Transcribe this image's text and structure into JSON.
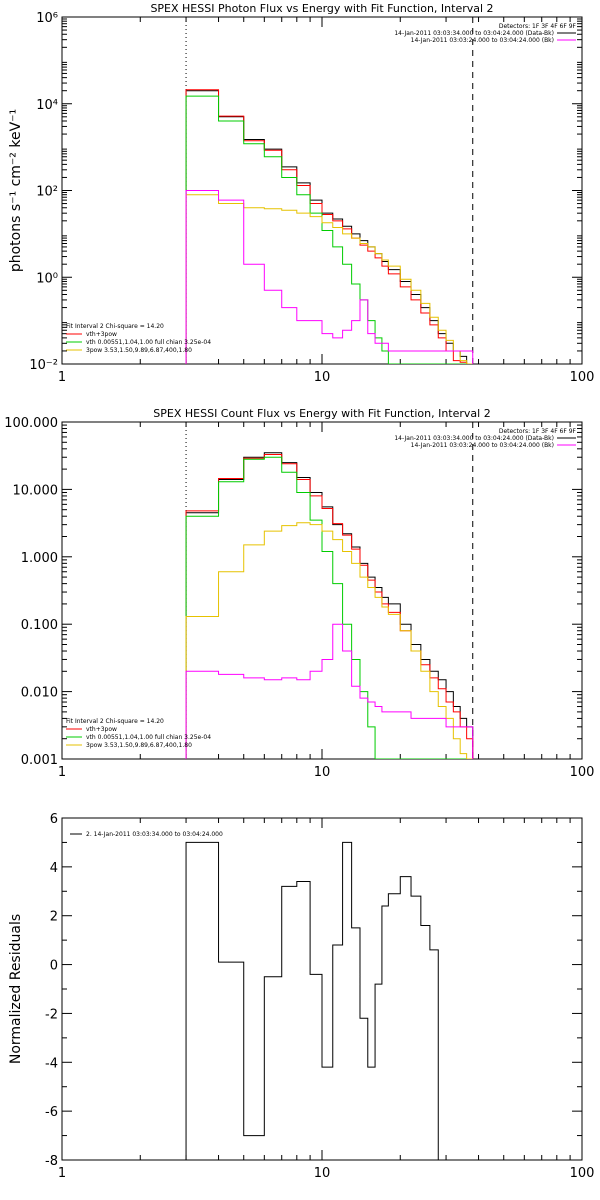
{
  "chart_data": [
    {
      "type": "line",
      "title": "SPEX HESSI Photon Flux vs Energy with Fit Function, Interval 2",
      "xlabel": "",
      "ylabel": "photons s⁻¹ cm⁻² keV⁻¹",
      "xscale": "log",
      "yscale": "log",
      "xlim": [
        1,
        100
      ],
      "ylim": [
        0.01,
        1000000
      ],
      "xticks": [
        {
          "v": 1,
          "label": "1"
        },
        {
          "v": 10,
          "label": "10"
        },
        {
          "v": 100,
          "label": "100"
        }
      ],
      "yticks": [
        {
          "v": 0.01,
          "label": "10⁻²"
        },
        {
          "v": 1,
          "label": "10⁰"
        },
        {
          "v": 100,
          "label": "10²"
        },
        {
          "v": 10000,
          "label": "10⁴"
        },
        {
          "v": 1000000,
          "label": "10⁶"
        }
      ],
      "vlines": [
        {
          "x": 3,
          "style": "dotted"
        },
        {
          "x": 38,
          "style": "dashed"
        }
      ],
      "legend_top_right": [
        {
          "text": "Detectors: 1F 3F 4F 6F 9F"
        },
        {
          "text": "14-Jan-2011 03:03:34.000 to 03:04:24.000 (Data-Bk)",
          "color": "#000000"
        },
        {
          "text": "14-Jan-2011 03:03:24.000 to 03:04:24.000 (Bk)",
          "color": "#ff00ff"
        }
      ],
      "legend_bottom_left": [
        {
          "text": "Fit Interval 2   Chi-square = 14.20"
        },
        {
          "text": "vth+3pow",
          "color": "#ff0000"
        },
        {
          "text": "vth 0.00551,1.04,1.00  full chian 3.25e-04",
          "color": "#00cc00"
        },
        {
          "text": "3pow 3.53,1.50,9.89,6.87,400,1.80",
          "color": "#e6c200"
        }
      ],
      "edges": [
        3,
        4,
        5,
        6,
        7,
        8,
        9,
        10,
        11,
        12,
        13,
        14,
        15,
        16,
        17,
        18,
        20,
        22,
        24,
        26,
        28,
        30,
        32,
        34,
        36,
        38
      ],
      "series": [
        {
          "color": "#000000",
          "values": [
            20000,
            5000,
            1500,
            900,
            350,
            150,
            60,
            30,
            22,
            15,
            10,
            7,
            5,
            3.5,
            2.3,
            1.5,
            0.8,
            0.4,
            0.2,
            0.1,
            0.05,
            0.03,
            0.02,
            0.015,
            0.01
          ]
        },
        {
          "color": "#ff0000",
          "values": [
            21000,
            5200,
            1400,
            850,
            300,
            130,
            50,
            28,
            20,
            13,
            8,
            5.5,
            4,
            2.8,
            1.8,
            1.2,
            0.6,
            0.3,
            0.15,
            0.08,
            0.04,
            0.02,
            0.012,
            0.011,
            0.01
          ]
        },
        {
          "color": "#00cc00",
          "values": [
            15000,
            4000,
            1200,
            600,
            200,
            80,
            30,
            12,
            5,
            2,
            0.7,
            0.3,
            0.1,
            0.04,
            0.02,
            0.01,
            0.01,
            0.01,
            0.01,
            0.01,
            0.01,
            0.01,
            0.01,
            0.01,
            0.01
          ]
        },
        {
          "color": "#e6c200",
          "values": [
            80,
            50,
            40,
            38,
            35,
            30,
            25,
            18,
            14,
            10,
            8,
            6,
            5,
            3.5,
            2.5,
            1.8,
            0.9,
            0.5,
            0.25,
            0.12,
            0.06,
            0.035,
            0.02,
            0.012,
            0.01
          ]
        },
        {
          "color": "#ff00ff",
          "values": [
            100,
            60,
            2,
            0.5,
            0.2,
            0.1,
            0.1,
            0.05,
            0.04,
            0.06,
            0.1,
            0.3,
            0.05,
            0.03,
            0.03,
            0.02,
            0.02,
            0.02,
            0.02,
            0.02,
            0.02,
            0.02,
            0.02,
            0.02,
            0.02
          ]
        }
      ]
    },
    {
      "type": "line",
      "title": "SPEX HESSI Count Flux vs Energy with Fit Function, Interval 2",
      "xlabel": "",
      "ylabel": "",
      "xscale": "log",
      "yscale": "log",
      "xlim": [
        1,
        100
      ],
      "ylim": [
        0.001,
        100
      ],
      "xticks": [
        {
          "v": 1,
          "label": "1"
        },
        {
          "v": 10,
          "label": "10"
        },
        {
          "v": 100,
          "label": "100"
        }
      ],
      "yticks": [
        {
          "v": 0.001,
          "label": "0.001"
        },
        {
          "v": 0.01,
          "label": "0.010"
        },
        {
          "v": 0.1,
          "label": "0.100"
        },
        {
          "v": 1,
          "label": "1.000"
        },
        {
          "v": 10,
          "label": "10.000"
        },
        {
          "v": 100,
          "label": "100.000"
        }
      ],
      "vlines": [
        {
          "x": 3,
          "style": "dotted"
        },
        {
          "x": 38,
          "style": "dashed"
        }
      ],
      "legend_top_right": [
        {
          "text": "Detectors: 1F 3F 4F 6F 9F"
        },
        {
          "text": "14-Jan-2011 03:03:34.000 to 03:04:24.000 (Data-Bk)",
          "color": "#000000"
        },
        {
          "text": "14-Jan-2011 03:03:24.000 to 03:04:24.000 (Bk)",
          "color": "#ff00ff"
        }
      ],
      "legend_bottom_left": [
        {
          "text": "Fit Interval 2   Chi-square = 14.20"
        },
        {
          "text": "vth+3pow",
          "color": "#ff0000"
        },
        {
          "text": "vth 0.00551,1.04,1.00  full chian 3.25e-04",
          "color": "#00cc00"
        },
        {
          "text": "3pow 3.53,1.50,9.89,6.87,400,1.80",
          "color": "#e6c200"
        }
      ],
      "edges": [
        3,
        4,
        5,
        6,
        7,
        8,
        9,
        10,
        11,
        12,
        13,
        14,
        15,
        16,
        17,
        18,
        20,
        22,
        24,
        26,
        28,
        30,
        32,
        34,
        36,
        38
      ],
      "series": [
        {
          "color": "#000000",
          "values": [
            4.5,
            14,
            30,
            35,
            25,
            15,
            9,
            5.5,
            3,
            2.2,
            1.4,
            0.8,
            0.5,
            0.35,
            0.25,
            0.2,
            0.1,
            0.05,
            0.03,
            0.02,
            0.015,
            0.01,
            0.006,
            0.004,
            0.003
          ]
        },
        {
          "color": "#ff0000",
          "values": [
            4.8,
            14.5,
            29,
            33,
            24,
            14,
            8,
            5.2,
            3.1,
            2.1,
            1.3,
            0.75,
            0.45,
            0.3,
            0.2,
            0.15,
            0.08,
            0.04,
            0.025,
            0.016,
            0.011,
            0.007,
            0.005,
            0.003,
            0.002
          ]
        },
        {
          "color": "#00cc00",
          "values": [
            4.0,
            13,
            28,
            30,
            18,
            9,
            3.5,
            1.2,
            0.4,
            0.1,
            0.03,
            0.01,
            0.003,
            0.001,
            0.001,
            0.001,
            0.001,
            0.001,
            0.001,
            0.001,
            0.001,
            0.001,
            0.001,
            0.001,
            0.001
          ]
        },
        {
          "color": "#e6c200",
          "values": [
            0.13,
            0.6,
            1.5,
            2.4,
            2.9,
            3.2,
            3.0,
            2.4,
            1.8,
            1.2,
            0.8,
            0.5,
            0.35,
            0.25,
            0.18,
            0.14,
            0.08,
            0.04,
            0.02,
            0.01,
            0.006,
            0.004,
            0.002,
            0.0012,
            0.001
          ]
        },
        {
          "color": "#ff00ff",
          "values": [
            0.02,
            0.018,
            0.016,
            0.015,
            0.016,
            0.015,
            0.02,
            0.03,
            0.1,
            0.04,
            0.012,
            0.008,
            0.007,
            0.006,
            0.005,
            0.005,
            0.005,
            0.004,
            0.004,
            0.004,
            0.004,
            0.003,
            0.003,
            0.003,
            0.003
          ]
        }
      ]
    },
    {
      "type": "line",
      "title": "",
      "xlabel": "",
      "ylabel": "Normalized Residuals",
      "xscale": "log",
      "yscale": "linear",
      "xlim": [
        1,
        100
      ],
      "ylim": [
        -8,
        6
      ],
      "xticks": [
        {
          "v": 1,
          "label": "1"
        },
        {
          "v": 10,
          "label": "10"
        },
        {
          "v": 100,
          "label": "100"
        }
      ],
      "yticks": [
        {
          "v": -8,
          "label": "-8"
        },
        {
          "v": -6,
          "label": "-6"
        },
        {
          "v": -4,
          "label": "-4"
        },
        {
          "v": -2,
          "label": "-2"
        },
        {
          "v": 0,
          "label": "0"
        },
        {
          "v": 2,
          "label": "2"
        },
        {
          "v": 4,
          "label": "4"
        },
        {
          "v": 6,
          "label": "6"
        }
      ],
      "vlines": [],
      "legend_top_left": [
        {
          "text": "2. 14-Jan-2011 03:03:34.000 to 03:04:24.000",
          "color": "#000000"
        }
      ],
      "edges": [
        3,
        4,
        5,
        6,
        7,
        8,
        9,
        10,
        11,
        12,
        13,
        14,
        15,
        16,
        17,
        18,
        20,
        22,
        24,
        26,
        28,
        30,
        32,
        34,
        36,
        38
      ],
      "series": [
        {
          "color": "#000000",
          "values": [
            5,
            0.1,
            -7,
            -0.5,
            3.2,
            3.4,
            -0.4,
            -4.2,
            0.8,
            5,
            1.5,
            -2.2,
            -4.2,
            -0.8,
            2.4,
            2.9,
            3.6,
            2.8,
            1.6,
            0.6,
            -8,
            -8,
            -8,
            -8,
            -8
          ]
        }
      ]
    }
  ]
}
